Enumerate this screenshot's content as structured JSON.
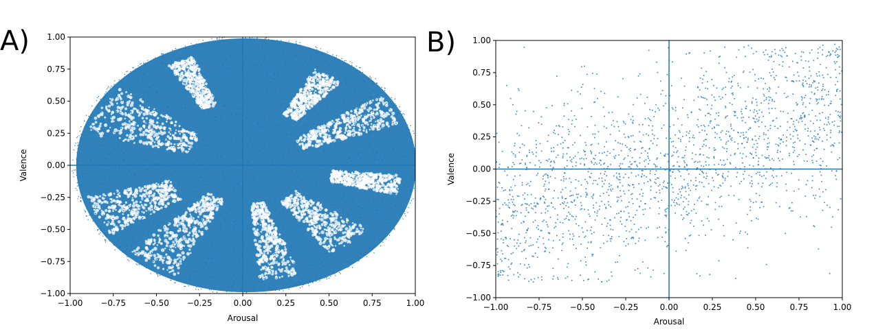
{
  "panels": {
    "a_label": "A)",
    "b_label": "B)"
  },
  "chart_data": [
    {
      "type": "scatter",
      "panel": "A)",
      "title": "",
      "xlabel": "Arousal",
      "ylabel": "Valence",
      "xlim": [
        -1.0,
        1.0
      ],
      "ylim": [
        -1.0,
        1.0
      ],
      "xticks": [
        "−1.00",
        "−0.75",
        "−0.50",
        "−0.25",
        "0.00",
        "0.25",
        "0.50",
        "0.75",
        "1.00"
      ],
      "yticks": [
        "−1.00",
        "−0.75",
        "−0.50",
        "−0.25",
        "0.00",
        "0.25",
        "0.50",
        "0.75",
        "1.00"
      ],
      "grid": false,
      "color": "#1f77b4",
      "description": "very dense point cloud filling an ellipse of radius ~1 centered near (0.05, 0), with sparser radial wedges",
      "reference_lines": {
        "x": 0.0,
        "y": 0.0
      }
    },
    {
      "type": "scatter",
      "panel": "B)",
      "title": "",
      "xlabel": "Arousal",
      "ylabel": "Valence",
      "xlim": [
        -1.0,
        1.0
      ],
      "ylim": [
        -1.0,
        1.0
      ],
      "xticks": [
        "−1.00",
        "−0.75",
        "−0.50",
        "−0.25",
        "0.00",
        "0.25",
        "0.50",
        "0.75",
        "1.00"
      ],
      "yticks": [
        "−1.00",
        "−0.75",
        "−0.50",
        "−0.25",
        "0.00",
        "0.25",
        "0.50",
        "0.75",
        "1.00"
      ],
      "grid": false,
      "color": "#1f77b4",
      "description": "sparse scatter of roughly 2000 points, x spread over [-1,1], y mostly in [-0.85,0.95], positively correlated",
      "reference_lines": {
        "x": 0.0,
        "y": 0.0
      }
    }
  ]
}
